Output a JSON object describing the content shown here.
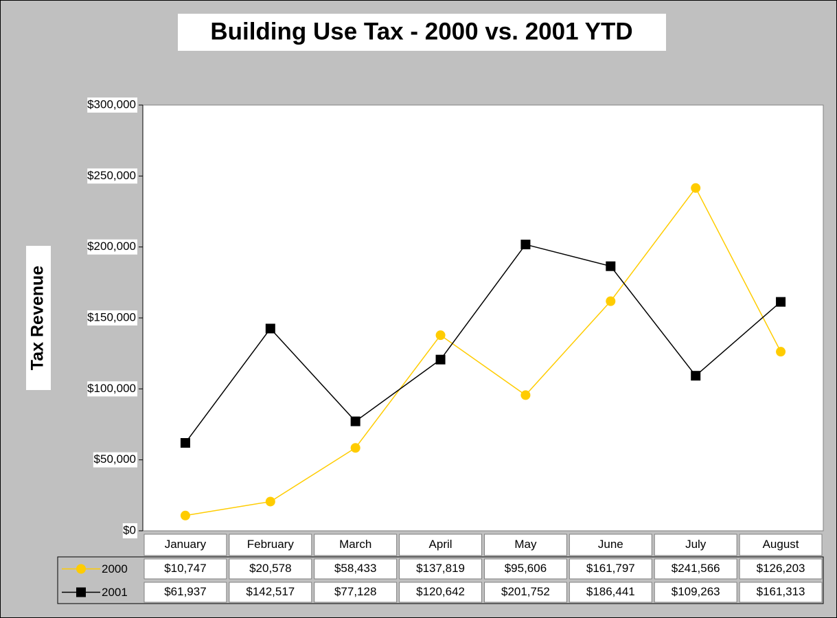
{
  "chart_data": {
    "type": "line",
    "title": "Building Use Tax - 2000 vs. 2001 YTD",
    "y_label": "Tax Revenue",
    "categories": [
      "January",
      "February",
      "March",
      "April",
      "May",
      "June",
      "July",
      "August"
    ],
    "series": [
      {
        "name": "2000",
        "color": "#ffcc00",
        "marker": "circle",
        "values": [
          10747,
          20578,
          58433,
          137819,
          95606,
          161797,
          241566,
          126203
        ],
        "value_labels": [
          "$10,747",
          "$20,578",
          "$58,433",
          "$137,819",
          "$95,606",
          "$161,797",
          "$241,566",
          "$126,203"
        ]
      },
      {
        "name": "2001",
        "color": "#000000",
        "marker": "square",
        "values": [
          61937,
          142517,
          77128,
          120642,
          201752,
          186441,
          109263,
          161313
        ],
        "value_labels": [
          "$61,937",
          "$142,517",
          "$77,128",
          "$120,642",
          "$201,752",
          "$186,441",
          "$109,263",
          "$161,313"
        ]
      }
    ],
    "ylim": [
      0,
      300000
    ],
    "yticks": [
      {
        "value": 0,
        "label": "$0"
      },
      {
        "value": 50000,
        "label": "$50,000"
      },
      {
        "value": 100000,
        "label": "$100,000"
      },
      {
        "value": 150000,
        "label": "$150,000"
      },
      {
        "value": 200000,
        "label": "$200,000"
      },
      {
        "value": 250000,
        "label": "$250,000"
      },
      {
        "value": 300000,
        "label": "$300,000"
      }
    ],
    "grid": false
  }
}
